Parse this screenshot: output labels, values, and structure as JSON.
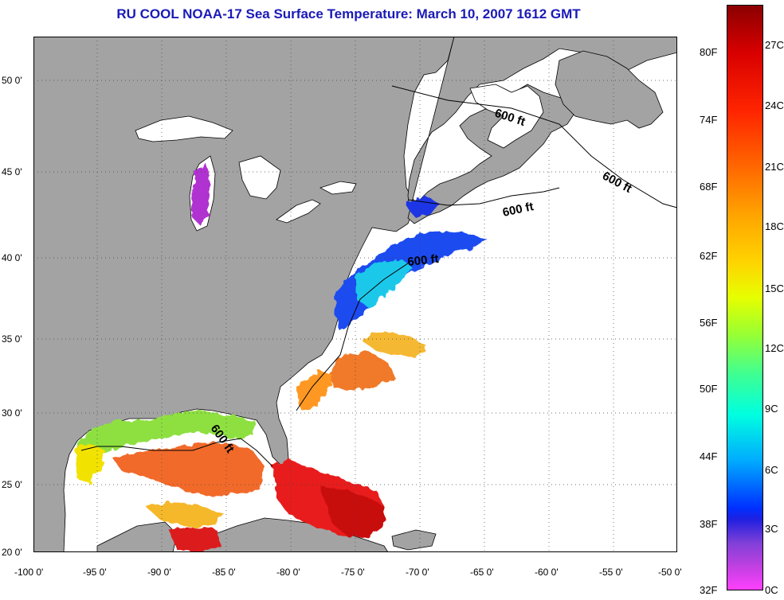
{
  "title": "RU COOL  NOAA-17  Sea Surface Temperature:  March 10, 2007 1612 GMT",
  "map": {
    "lon_range": [
      -100,
      -50
    ],
    "lat_range": [
      20,
      52.5
    ],
    "lat_ticks": [
      "50 0'",
      "45 0'",
      "40 0'",
      "35 0'",
      "30 0'",
      "25 0'",
      "20 0'"
    ],
    "lon_ticks": [
      "-100 0'",
      "-95 0'",
      "-90 0'",
      "-85 0'",
      "-80 0'",
      "-75 0'",
      "-70 0'",
      "-65 0'",
      "-60 0'",
      "-55 0'",
      "-50 0'"
    ],
    "contour_labels": [
      "600 ft",
      "600 ft",
      "600 ft",
      "600 ft",
      "600 ft"
    ],
    "colors": {
      "land": "#a3a3a3",
      "ocean_no_data": "#ffffff",
      "grid": "#555555"
    }
  },
  "colorbar": {
    "fahrenheit": [
      "80F",
      "74F",
      "68F",
      "62F",
      "56F",
      "50F",
      "44F",
      "38F",
      "32F"
    ],
    "celsius": [
      "27C",
      "24C",
      "21C",
      "18C",
      "15C",
      "12C",
      "9C",
      "6C",
      "3C",
      "0C"
    ]
  }
}
